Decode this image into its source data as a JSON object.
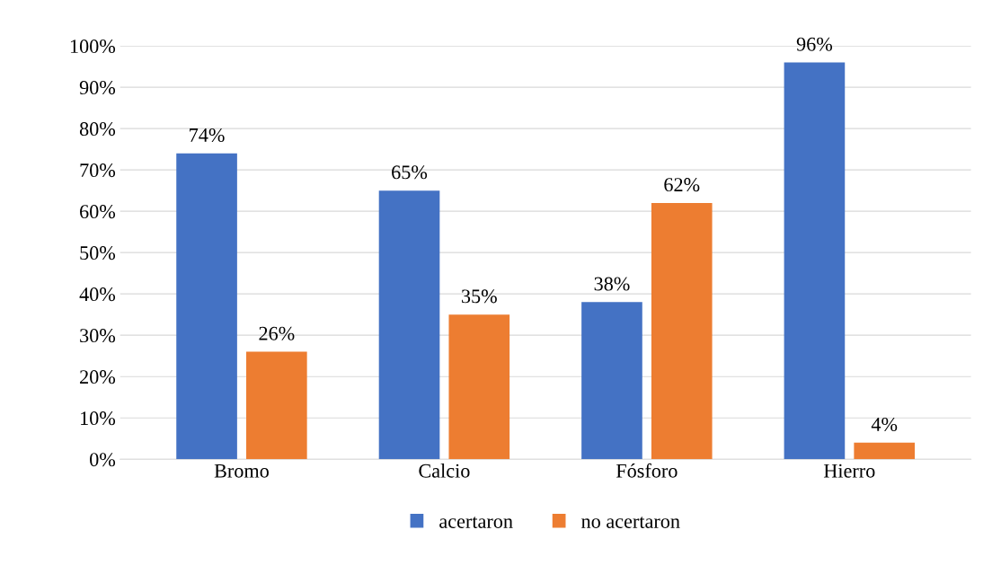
{
  "chart_data": {
    "type": "bar",
    "categories": [
      "Bromo",
      "Calcio",
      "Fósforo",
      "Hierro"
    ],
    "series": [
      {
        "name": "acertaron",
        "color": "#4472c4",
        "values": [
          74,
          65,
          38,
          96
        ],
        "value_labels": [
          "74%",
          "65%",
          "38%",
          "96%"
        ]
      },
      {
        "name": "no acertaron",
        "color": "#ed7d31",
        "values": [
          26,
          35,
          62,
          4
        ],
        "value_labels": [
          "26%",
          "35%",
          "62%",
          "4%"
        ]
      }
    ],
    "ylim": [
      0,
      100
    ],
    "yticks": [
      {
        "value": 0,
        "label": "0%"
      },
      {
        "value": 10,
        "label": "10%"
      },
      {
        "value": 20,
        "label": "20%"
      },
      {
        "value": 30,
        "label": "30%"
      },
      {
        "value": 40,
        "label": "40%"
      },
      {
        "value": 50,
        "label": "50%"
      },
      {
        "value": 60,
        "label": "60%"
      },
      {
        "value": 70,
        "label": "70%"
      },
      {
        "value": 80,
        "label": "80%"
      },
      {
        "value": 90,
        "label": "90%"
      },
      {
        "value": 100,
        "label": "100%"
      }
    ],
    "grid": "y",
    "legend": "bottom"
  }
}
